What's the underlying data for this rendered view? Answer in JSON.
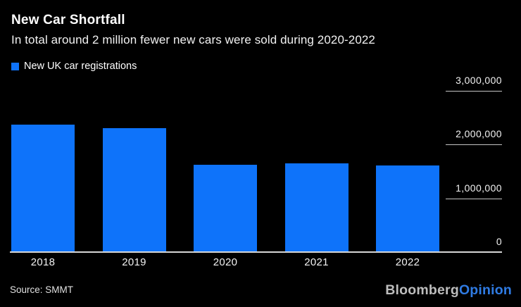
{
  "header": {
    "title": "New Car Shortfall",
    "subtitle": "In total around 2 million fewer new cars were sold during 2020-2022"
  },
  "legend": {
    "label": "New UK car registrations",
    "swatch_color": "#0E73FA"
  },
  "chart_data": {
    "type": "bar",
    "title": "New Car Shortfall",
    "subtitle": "In total around 2 million fewer new cars were sold during 2020-2022",
    "series_name": "New UK car registrations",
    "categories": [
      "2018",
      "2019",
      "2020",
      "2021",
      "2022"
    ],
    "values": [
      2367000,
      2311000,
      1631000,
      1647000,
      1614000
    ],
    "xlabel": "",
    "ylabel": "",
    "ylim": [
      0,
      3000000
    ],
    "yticks": [
      0,
      1000000,
      2000000,
      3000000
    ],
    "ytick_labels": [
      "0",
      "1,000,000",
      "2,000,000",
      "3,000,000"
    ],
    "bar_color": "#0E73FA",
    "background_color": "#000000",
    "grid": "right-side tick dashes only, no full gridlines",
    "legend_position": "top-left",
    "axis_side": "right"
  },
  "footer": {
    "source": "Source: SMMT",
    "brand": {
      "bloomberg": "Bloomberg",
      "opinion": "Opinion",
      "bloomberg_color": "#bdbdbd",
      "opinion_color": "#2F7BE3"
    }
  },
  "colors": {
    "background": "#000000",
    "baseline": "#d6d6d6",
    "tick_line": "#c4c4c4",
    "text": "#ffffff"
  }
}
